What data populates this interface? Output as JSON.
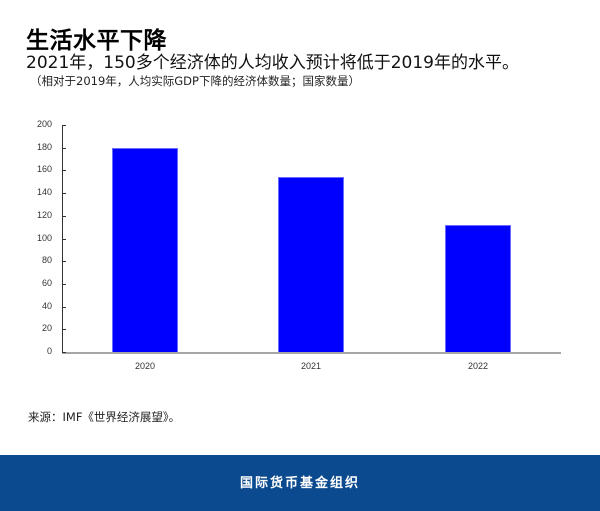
{
  "header": {
    "title": "生活水平下降",
    "subtitle": "2021年，150多个经济体的人均收入预计将低于2019年的水平。",
    "note": "（相对于2019年，人均实际GDP下降的经济体数量；国家数量）"
  },
  "source": "来源：IMF《世界经济展望》。",
  "footer": {
    "org_name": "国际货币基金组织",
    "background_color": "#0b4a8f"
  },
  "chart_data": {
    "type": "bar",
    "title": "生活水平下降",
    "subtitle": "2021年，150多个经济体的人均收入预计将低于2019年的水平。",
    "note": "（相对于2019年，人均实际GDP下降的经济体数量；国家数量）",
    "categories": [
      "2020",
      "2021",
      "2022"
    ],
    "values": [
      180,
      154,
      112
    ],
    "xlabel": "",
    "ylabel": "国家数量",
    "ylim": [
      0,
      200
    ],
    "yticks": [
      "0",
      "20",
      "40",
      "60",
      "80",
      "100",
      "120",
      "140",
      "160",
      "180",
      "200"
    ],
    "grid": false,
    "legend": null,
    "bar_color": "#0000ff",
    "source": "来源：IMF《世界经济展望》。"
  }
}
